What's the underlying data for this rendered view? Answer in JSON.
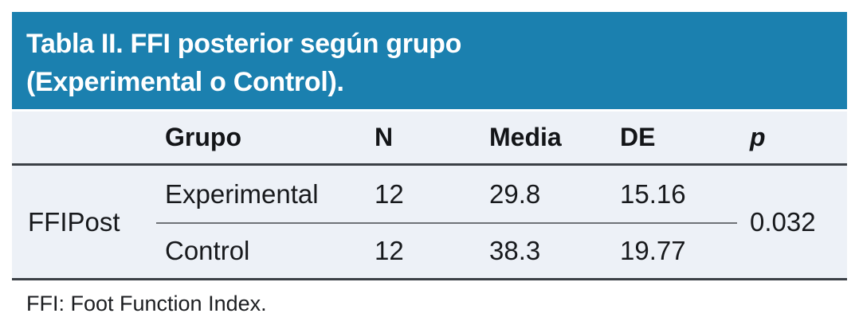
{
  "table": {
    "title": {
      "line1": "Tabla II. FFI posterior según grupo",
      "line2": "(Experimental o Control)."
    },
    "columns": {
      "group": "Grupo",
      "n": "N",
      "mean": "Media",
      "sd": "DE",
      "p": "p"
    },
    "row_group_label": "FFIPost",
    "rows": [
      {
        "group": "Experimental",
        "n": "12",
        "mean": "29.8",
        "sd": "15.16"
      },
      {
        "group": "Control",
        "n": "12",
        "mean": "38.3",
        "sd": "19.77"
      }
    ],
    "p_value": "0.032",
    "footnote": "FFI: Foot Function Index."
  },
  "colors": {
    "header_bg": "#1b80af",
    "body_bg": "#edf1f7",
    "rule_dark": "#3b4046",
    "rule_light": "#6f7377"
  },
  "chart_data": {
    "type": "table",
    "title": "Tabla II. FFI posterior según grupo (Experimental o Control).",
    "columns": [
      "",
      "Grupo",
      "N",
      "Media",
      "DE",
      "p"
    ],
    "rows": [
      [
        "FFIPost",
        "Experimental",
        12,
        29.8,
        15.16,
        0.032
      ],
      [
        "FFIPost",
        "Control",
        12,
        38.3,
        19.77,
        0.032
      ]
    ],
    "footnote": "FFI: Foot Function Index."
  }
}
